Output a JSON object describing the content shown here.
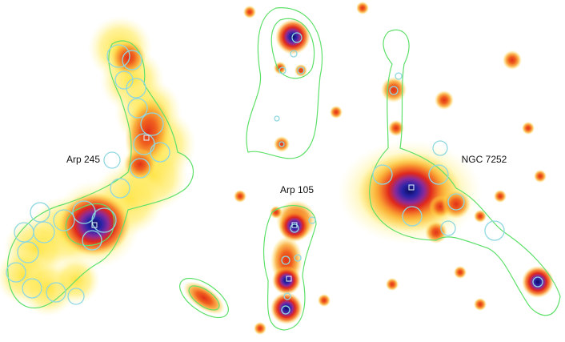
{
  "panels": [
    {
      "label": "Arp 245"
    },
    {
      "label": "Arp 105"
    },
    {
      "label": "NGC 7252"
    }
  ]
}
